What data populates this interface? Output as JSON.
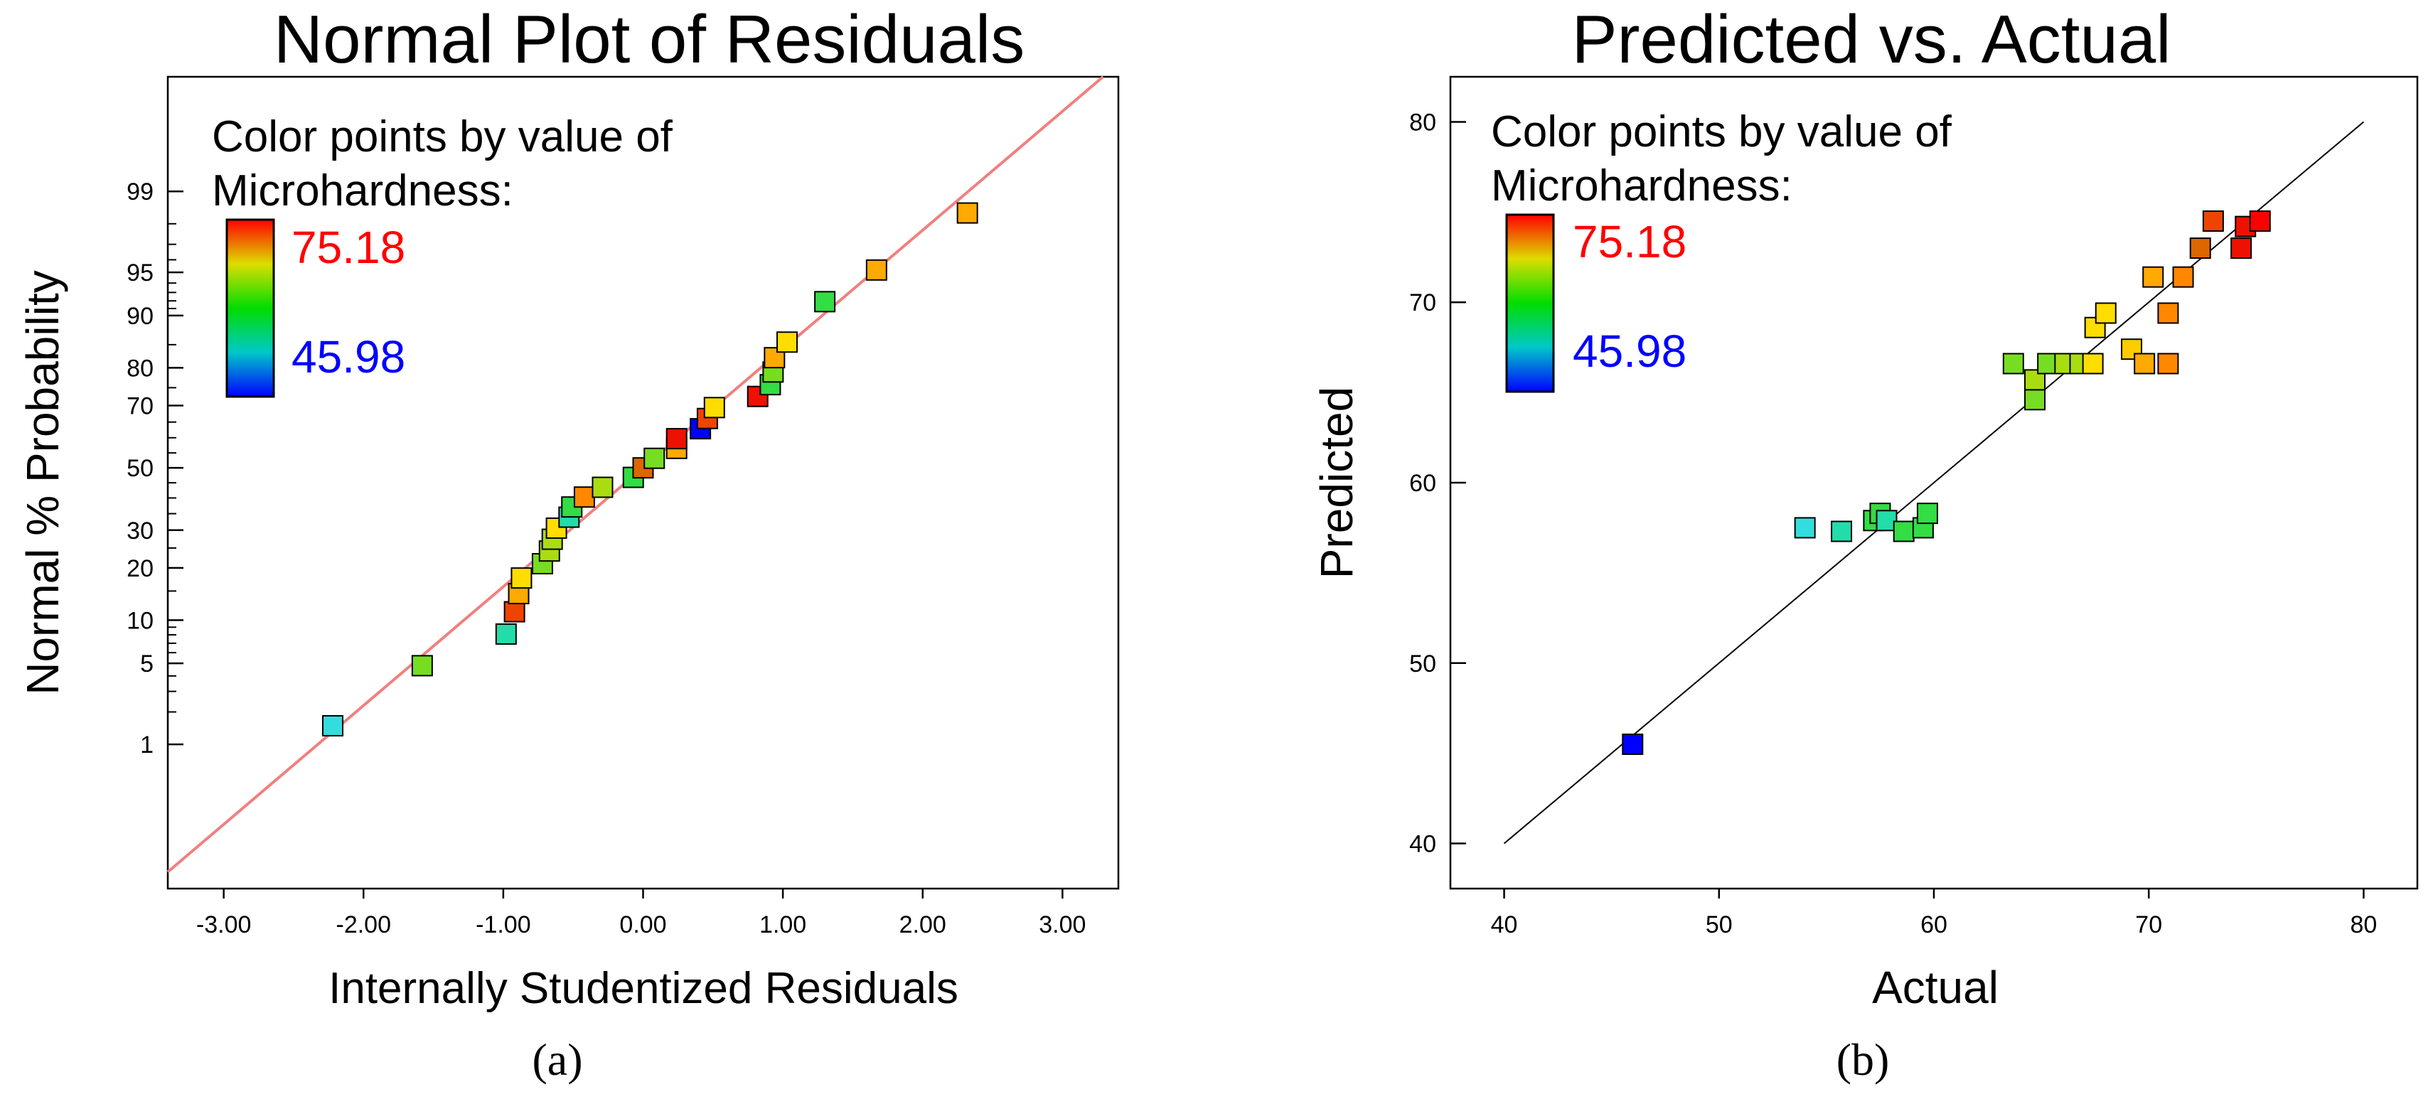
{
  "chart_data": [
    {
      "type": "scatter",
      "title": "Normal Plot of Residuals",
      "xlabel": "Internally Studentized Residuals",
      "ylabel": "Normal % Probability",
      "panel_label": "(a)",
      "xlim": [
        -3.4,
        3.4
      ],
      "ytick_labels": [
        "1",
        "5",
        "10",
        "20",
        "30",
        "50",
        "70",
        "80",
        "90",
        "95",
        "99"
      ],
      "ytick_values": [
        1,
        5,
        10,
        20,
        30,
        50,
        70,
        80,
        90,
        95,
        99
      ],
      "xtick_labels": [
        "-3.00",
        "-2.00",
        "-1.00",
        "0.00",
        "1.00",
        "2.00",
        "3.00"
      ],
      "xtick_values": [
        -3,
        -2,
        -1,
        0,
        1,
        2,
        3
      ],
      "grid": false,
      "legend": {
        "title_line1": "Color points by value of",
        "title_line2": "Microhardness:",
        "max_label": "75.18",
        "min_label": "45.98",
        "max_color": "#ff0000",
        "min_color": "#0000ff"
      },
      "reference_line": {
        "color": "#f08080",
        "description": "normal reference line"
      },
      "points": [
        {
          "x": -2.22,
          "p": 1.5,
          "color": "#33dddd"
        },
        {
          "x": -1.58,
          "p": 4.8,
          "color": "#77dd22"
        },
        {
          "x": -0.98,
          "p": 8.1,
          "color": "#22ddaa"
        },
        {
          "x": -0.92,
          "p": 11.3,
          "color": "#ee4400"
        },
        {
          "x": -0.89,
          "p": 14.5,
          "color": "#ffaa00"
        },
        {
          "x": -0.87,
          "p": 17.7,
          "color": "#ffdd00"
        },
        {
          "x": -0.72,
          "p": 21.0,
          "color": "#77dd22"
        },
        {
          "x": -0.67,
          "p": 24.2,
          "color": "#aadd11"
        },
        {
          "x": -0.65,
          "p": 27.4,
          "color": "#aadd11"
        },
        {
          "x": -0.62,
          "p": 30.6,
          "color": "#ffdd00"
        },
        {
          "x": -0.53,
          "p": 33.9,
          "color": "#22ddaa"
        },
        {
          "x": -0.51,
          "p": 37.1,
          "color": "#33dd44"
        },
        {
          "x": -0.42,
          "p": 40.3,
          "color": "#ff8800"
        },
        {
          "x": -0.29,
          "p": 43.5,
          "color": "#aadd11"
        },
        {
          "x": -0.07,
          "p": 46.8,
          "color": "#33dd44"
        },
        {
          "x": 0.0,
          "p": 50.0,
          "color": "#dd6600"
        },
        {
          "x": 0.08,
          "p": 53.2,
          "color": "#77dd22"
        },
        {
          "x": 0.24,
          "p": 56.5,
          "color": "#ffaa00"
        },
        {
          "x": 0.24,
          "p": 59.7,
          "color": "#ee1100"
        },
        {
          "x": 0.41,
          "p": 62.9,
          "color": "#0000ff"
        },
        {
          "x": 0.46,
          "p": 66.1,
          "color": "#ee4400"
        },
        {
          "x": 0.51,
          "p": 69.4,
          "color": "#ffdd00"
        },
        {
          "x": 0.82,
          "p": 72.6,
          "color": "#ee1100"
        },
        {
          "x": 0.91,
          "p": 75.8,
          "color": "#33dd44"
        },
        {
          "x": 0.93,
          "p": 79.0,
          "color": "#77dd22"
        },
        {
          "x": 0.94,
          "p": 82.3,
          "color": "#ffaa00"
        },
        {
          "x": 1.03,
          "p": 85.5,
          "color": "#ffdd00"
        },
        {
          "x": 1.3,
          "p": 91.9,
          "color": "#33dd44"
        },
        {
          "x": 1.67,
          "p": 95.2,
          "color": "#ffaa00"
        },
        {
          "x": 2.32,
          "p": 98.4,
          "color": "#ffaa00"
        }
      ]
    },
    {
      "type": "scatter",
      "title": "Predicted vs. Actual",
      "xlabel": "Actual",
      "ylabel": "Predicted",
      "panel_label": "(b)",
      "xlim": [
        37.5,
        82.5
      ],
      "ylim": [
        37.5,
        82.5
      ],
      "xtick_labels": [
        "40",
        "50",
        "60",
        "70",
        "80"
      ],
      "xtick_values": [
        40,
        50,
        60,
        70,
        80
      ],
      "ytick_labels": [
        "40",
        "50",
        "60",
        "70",
        "80"
      ],
      "ytick_values": [
        40,
        50,
        60,
        70,
        80
      ],
      "grid": false,
      "legend": {
        "title_line1": "Color points by value of",
        "title_line2": "Microhardness:",
        "max_label": "75.18",
        "min_label": "45.98",
        "max_color": "#ff0000",
        "min_color": "#0000ff"
      },
      "reference_line": {
        "color": "#000000",
        "description": "y = x"
      },
      "points": [
        {
          "x": 45.98,
          "y": 45.5,
          "color": "#0000ff"
        },
        {
          "x": 54.0,
          "y": 57.5,
          "color": "#33dddd"
        },
        {
          "x": 55.7,
          "y": 57.3,
          "color": "#22ddaa"
        },
        {
          "x": 57.2,
          "y": 57.9,
          "color": "#33dd44"
        },
        {
          "x": 57.5,
          "y": 58.3,
          "color": "#33dd44"
        },
        {
          "x": 57.8,
          "y": 57.9,
          "color": "#22ddaa"
        },
        {
          "x": 58.6,
          "y": 57.3,
          "color": "#33dd44"
        },
        {
          "x": 59.5,
          "y": 57.5,
          "color": "#33dd44"
        },
        {
          "x": 59.7,
          "y": 58.3,
          "color": "#33dd44"
        },
        {
          "x": 63.7,
          "y": 66.6,
          "color": "#77dd22"
        },
        {
          "x": 64.7,
          "y": 64.6,
          "color": "#77dd22"
        },
        {
          "x": 64.7,
          "y": 65.7,
          "color": "#aadd11"
        },
        {
          "x": 65.3,
          "y": 66.6,
          "color": "#77dd22"
        },
        {
          "x": 66.1,
          "y": 66.6,
          "color": "#aadd11"
        },
        {
          "x": 66.8,
          "y": 66.6,
          "color": "#aadd11"
        },
        {
          "x": 67.4,
          "y": 66.6,
          "color": "#ffdd00"
        },
        {
          "x": 67.5,
          "y": 68.6,
          "color": "#ffdd00"
        },
        {
          "x": 68.0,
          "y": 69.4,
          "color": "#ffdd00"
        },
        {
          "x": 69.2,
          "y": 67.4,
          "color": "#ffcc00"
        },
        {
          "x": 69.8,
          "y": 66.6,
          "color": "#ffaa00"
        },
        {
          "x": 70.2,
          "y": 71.4,
          "color": "#ffaa00"
        },
        {
          "x": 70.9,
          "y": 66.6,
          "color": "#ff8800"
        },
        {
          "x": 70.9,
          "y": 69.4,
          "color": "#ff8800"
        },
        {
          "x": 71.6,
          "y": 71.4,
          "color": "#ff8800"
        },
        {
          "x": 72.4,
          "y": 73.0,
          "color": "#dd6600"
        },
        {
          "x": 73.0,
          "y": 74.5,
          "color": "#ee4400"
        },
        {
          "x": 74.3,
          "y": 73.0,
          "color": "#ee1100"
        },
        {
          "x": 74.5,
          "y": 74.2,
          "color": "#ee1100"
        },
        {
          "x": 75.18,
          "y": 74.5,
          "color": "#ff0000"
        }
      ]
    }
  ]
}
